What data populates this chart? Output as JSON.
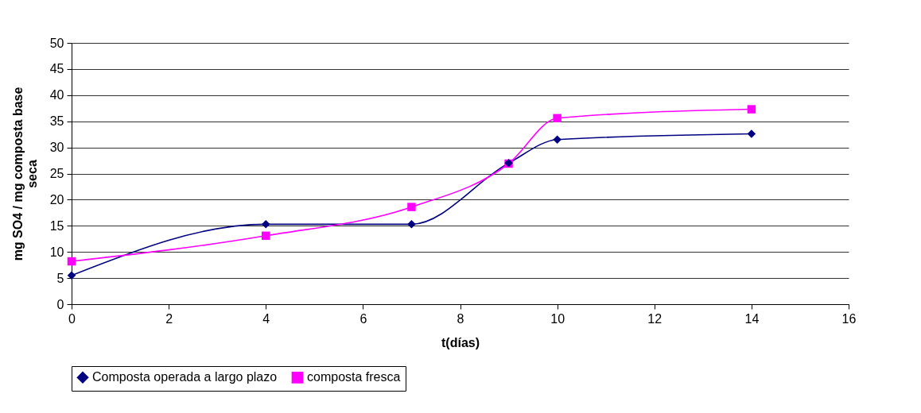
{
  "chart_data": {
    "type": "line",
    "xlabel": "t(días)",
    "ylabel": "mg SO4 / mg composta base seca",
    "x": [
      0,
      4,
      7,
      9,
      10,
      14
    ],
    "series": [
      {
        "name": "Composta operada a largo plazo",
        "color": "#000080",
        "marker": "diamond",
        "values": [
          5.5,
          15.3,
          15.3,
          27,
          31.5,
          32.6
        ]
      },
      {
        "name": "composta fresca",
        "color": "#ff00ff",
        "marker": "square",
        "values": [
          8.2,
          13.1,
          18.6,
          26.9,
          35.6,
          37.3
        ]
      }
    ],
    "xlim": [
      0,
      16
    ],
    "xticks": [
      0,
      2,
      4,
      6,
      8,
      10,
      12,
      14,
      16
    ],
    "ylim": [
      0,
      50
    ],
    "yticks": [
      0,
      5,
      10,
      15,
      20,
      25,
      30,
      35,
      40,
      45,
      50
    ],
    "grid": "y",
    "legend": "bottom"
  }
}
